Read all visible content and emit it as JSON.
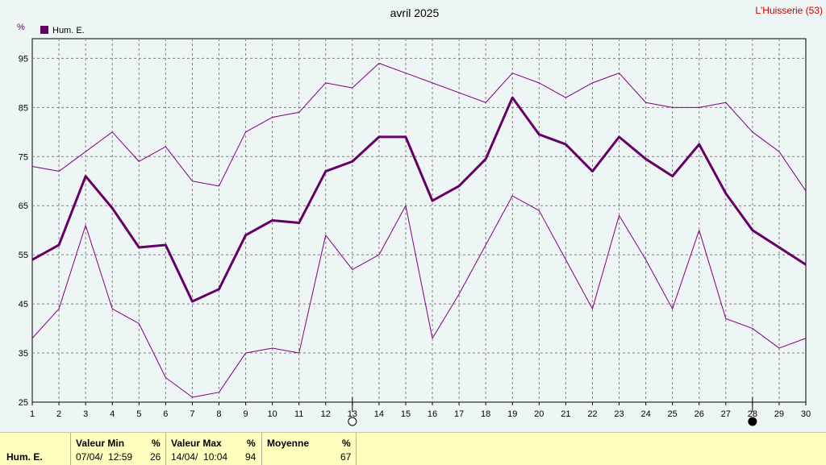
{
  "chart_data": {
    "type": "line",
    "title": "avril 2025",
    "location": "L'Huisserie (53)",
    "ylabel": "%",
    "ylim": [
      25,
      99
    ],
    "yticks": [
      25,
      35,
      45,
      55,
      65,
      75,
      85,
      95
    ],
    "x": [
      1,
      2,
      3,
      4,
      5,
      6,
      7,
      8,
      9,
      10,
      11,
      12,
      13,
      14,
      15,
      16,
      17,
      18,
      19,
      20,
      21,
      22,
      23,
      24,
      25,
      26,
      27,
      28,
      29,
      30
    ],
    "grid": true,
    "legend": "top-left",
    "series": [
      {
        "name": "Hum. E.",
        "role": "mean",
        "color": "#660066",
        "values": [
          54,
          57,
          71,
          64.5,
          56.5,
          57,
          45.5,
          48,
          59,
          62,
          61.5,
          72,
          74,
          79,
          79,
          66,
          69,
          74.5,
          87,
          79.5,
          77.5,
          72,
          79,
          74.5,
          71,
          77.5,
          67.5,
          60,
          56.5,
          53
        ]
      },
      {
        "role": "max",
        "color": "#800080",
        "values": [
          73,
          72,
          76,
          80,
          74,
          77,
          70,
          69,
          80,
          83,
          84,
          90,
          89,
          94,
          92,
          90,
          88,
          86,
          92,
          90,
          87,
          90,
          92,
          86,
          85,
          85,
          86,
          80,
          76,
          68
        ]
      },
      {
        "role": "min",
        "color": "#800080",
        "values": [
          38,
          44,
          61,
          44,
          41,
          30,
          26,
          27,
          35,
          36,
          35,
          59,
          52,
          55,
          65,
          38,
          47,
          57,
          67,
          64,
          54,
          44,
          63,
          54,
          44,
          60,
          42,
          40,
          36,
          38
        ]
      }
    ],
    "markers": [
      {
        "day": 13,
        "symbol": "open-circle"
      },
      {
        "day": 28,
        "symbol": "filled-circle"
      }
    ]
  },
  "legend_label": "Hum. E.",
  "footer": {
    "row_label": "Hum. E.",
    "min_header": "Valeur Min",
    "min_unit": "%",
    "min_date": "07/04/  12:59",
    "min_value": "26",
    "max_header": "Valeur Max",
    "max_unit": "%",
    "max_date": "14/04/  10:04",
    "max_value": "94",
    "avg_header": "Moyenne",
    "avg_unit": "%",
    "avg_value": "67"
  }
}
